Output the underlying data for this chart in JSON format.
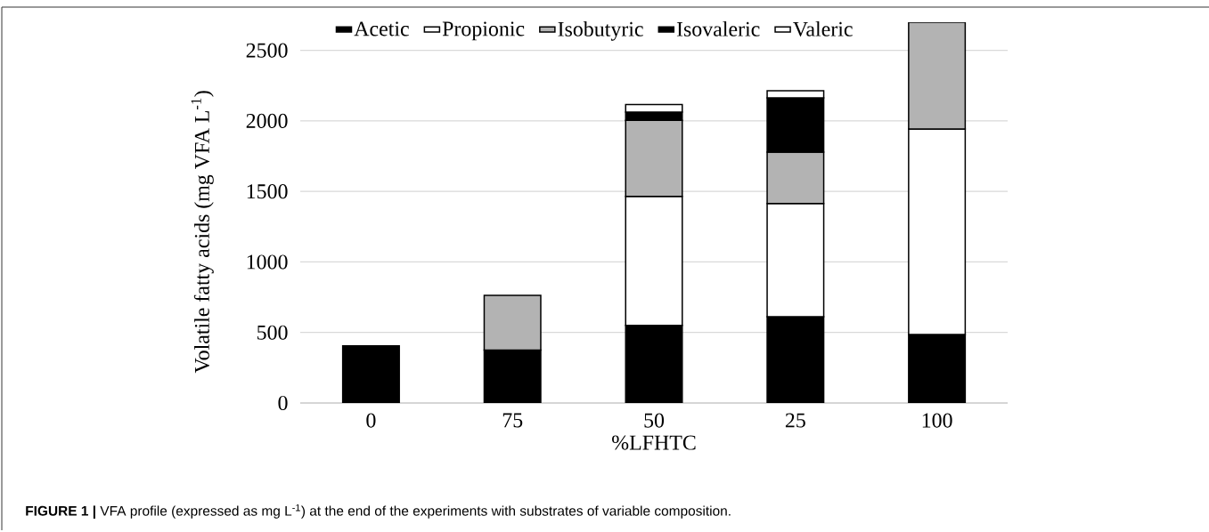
{
  "chart_data": {
    "type": "bar",
    "stacked": true,
    "xlabel": "%LFHTC",
    "ylabel": "Volatile fatty acids (mg VFA L$^{-1}$)",
    "categories": [
      "0",
      "75",
      "50",
      "25",
      "100"
    ],
    "series": [
      {
        "name": "Acetic",
        "color": "#000000",
        "values": [
          405,
          376,
          551,
          611,
          485
        ]
      },
      {
        "name": "Propionic",
        "color": "#ffffff",
        "values": [
          null,
          null,
          914,
          803,
          1458
        ]
      },
      {
        "name": "Isobutyric",
        "color": "#b3b3b3",
        "values": [
          null,
          387,
          539,
          364,
          757
        ]
      },
      {
        "name": "Isovaleric",
        "color": "#000000",
        "values": [
          null,
          null,
          59,
          385,
          null
        ]
      },
      {
        "name": "Valeric",
        "color": "#ffffff",
        "values": [
          null,
          null,
          53,
          51,
          null
        ]
      }
    ],
    "ylim": [
      0,
      2700
    ],
    "yticks": [
      0,
      500,
      1000,
      1500,
      2000,
      2500
    ],
    "grid": "y",
    "legend": "top",
    "annotations": [
      "**FIGURE 1 |** VFA profile (expressed as mg L$^{-1}$) at the end of the experiments with substrates of variable composition."
    ]
  }
}
